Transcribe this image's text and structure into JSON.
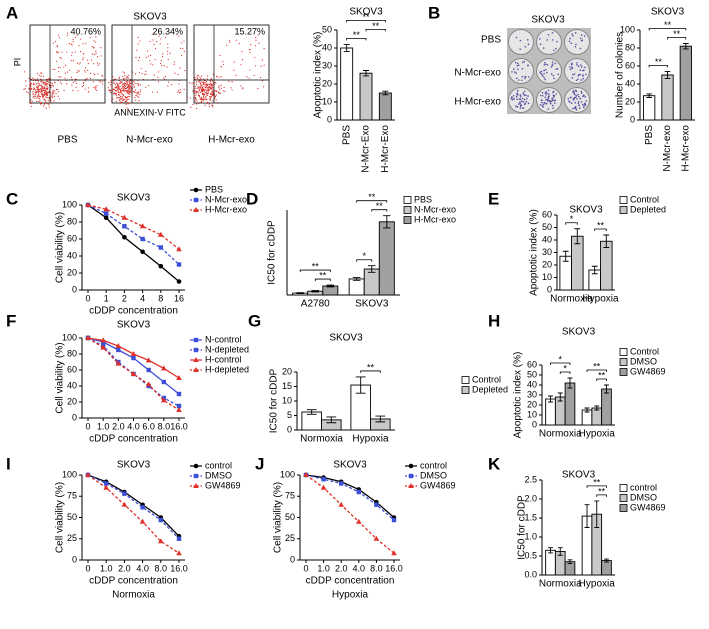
{
  "flow_cytometry": {
    "panel": "A",
    "title": "SKOV3",
    "y_label": "PI",
    "x_label": "ANNEXIN-V FITC",
    "plots": [
      {
        "label": "PBS",
        "percent": "40.76%"
      },
      {
        "label": "N-Mcr-exo",
        "percent": "26.34%"
      },
      {
        "label": "H-Mcr-exo",
        "percent": "15.27%"
      }
    ]
  },
  "colony_assay": {
    "panel": "B",
    "title": "SKOV3",
    "rows": [
      "PBS",
      "N-Mcr-exo",
      "H-Mcr-exo"
    ]
  },
  "chart_data": [
    {
      "type": "bar",
      "title": "SKOV3",
      "y_label": "Apoptotic index (%)",
      "categories": [
        "PBS",
        "N-Mcr-Exo",
        "H-Mcr-Exo"
      ],
      "values": [
        40,
        26,
        15
      ],
      "errors": [
        2,
        1.5,
        1
      ],
      "colors": [
        "#ffffff",
        "#c8c8c8",
        "#a0a0a0"
      ],
      "ylim": [
        0,
        50
      ],
      "yticks": [
        0,
        10,
        20,
        30,
        40,
        50
      ],
      "significance": [
        {
          "label": "**",
          "bars": [
            0,
            1
          ]
        },
        {
          "label": "**",
          "bars": [
            1,
            2
          ]
        },
        {
          "label": "**",
          "bars": [
            0,
            2
          ]
        }
      ]
    },
    {
      "type": "bar",
      "title": "SKOV3",
      "y_label": "Number of colonies",
      "categories": [
        "PBS",
        "N-Mcr-exo",
        "H-Mcr-exo"
      ],
      "values": [
        27,
        50,
        82
      ],
      "errors": [
        2,
        4,
        3
      ],
      "colors": [
        "#ffffff",
        "#c8c8c8",
        "#a0a0a0"
      ],
      "ylim": [
        0,
        100
      ],
      "yticks": [
        0,
        20,
        40,
        60,
        80,
        100
      ],
      "significance": [
        {
          "label": "**",
          "bars": [
            0,
            1
          ]
        },
        {
          "label": "**",
          "bars": [
            1,
            2
          ]
        },
        {
          "label": "**",
          "bars": [
            0,
            2
          ]
        }
      ]
    },
    {
      "type": "line",
      "panel": "C",
      "title": "SKOV3",
      "x_label": "cDDP concentration",
      "y_label": "Cell viability (%)",
      "categories": [
        "0",
        "1",
        "2",
        "4",
        "8",
        "16"
      ],
      "ylim": [
        0,
        100
      ],
      "yticks": [
        0,
        20,
        40,
        60,
        80,
        100
      ],
      "series": [
        {
          "name": "PBS",
          "color": "#000000",
          "marker": "circle",
          "style": "solid",
          "values": [
            100,
            85,
            62,
            45,
            28,
            10
          ]
        },
        {
          "name": "N-Mcr-exo",
          "color": "#3b4fd8",
          "marker": "square",
          "style": "dashed",
          "values": [
            100,
            90,
            75,
            60,
            50,
            30
          ]
        },
        {
          "name": "H-Mcr-exo",
          "color": "#e0302a",
          "marker": "triangle",
          "style": "dashed",
          "values": [
            100,
            95,
            85,
            75,
            65,
            48
          ]
        }
      ]
    },
    {
      "type": "bar",
      "panel": "D",
      "y_label": "IC50 for cDDP",
      "categories": [
        "A2780",
        "SKOV3"
      ],
      "ylim": [
        0,
        18
      ],
      "series": [
        {
          "name": "PBS",
          "color": "#ffffff",
          "values": [
            0.4,
            3.4
          ],
          "errors": [
            0.1,
            0.3
          ]
        },
        {
          "name": "N-Mcr-exo",
          "color": "#c8c8c8",
          "values": [
            0.8,
            5.5
          ],
          "errors": [
            0.15,
            0.7
          ]
        },
        {
          "name": "H-Mcr-exo",
          "color": "#a0a0a0",
          "values": [
            1.9,
            15.5
          ],
          "errors": [
            0.2,
            1.3
          ]
        }
      ],
      "significance": [
        {
          "label": "**",
          "bars": [
            1,
            2
          ]
        },
        {
          "label": "**",
          "bars": [
            0,
            2
          ]
        },
        {
          "label": "*",
          "bars": [
            3,
            4
          ]
        },
        {
          "label": "**",
          "bars": [
            4,
            5
          ]
        },
        {
          "label": "**",
          "bars": [
            3,
            5
          ]
        }
      ]
    },
    {
      "type": "bar",
      "panel": "E",
      "title": "SKOV3",
      "y_label": "Apoptotic index (%)",
      "categories": [
        "Normoxia",
        "Hypoxia"
      ],
      "ylim": [
        0,
        60
      ],
      "yticks": [
        0,
        10,
        20,
        30,
        40,
        50,
        60
      ],
      "series": [
        {
          "name": "Control",
          "color": "#ffffff",
          "values": [
            27,
            16
          ],
          "errors": [
            4,
            3
          ]
        },
        {
          "name": "Depleted",
          "color": "#c8c8c8",
          "values": [
            43,
            39
          ],
          "errors": [
            6,
            5
          ]
        }
      ],
      "significance": [
        {
          "label": "*",
          "bars": [
            0,
            1
          ]
        },
        {
          "label": "**",
          "bars": [
            2,
            3
          ]
        }
      ]
    },
    {
      "type": "line",
      "panel": "F",
      "title": "SKOV3",
      "x_label": "cDDP concentration",
      "y_label": "Cell viability (%)",
      "categories": [
        "0",
        "1.0",
        "2.0",
        "4.0",
        "6.0",
        "8.0",
        "16.0"
      ],
      "ylim": [
        0,
        100
      ],
      "yticks": [
        0,
        20,
        40,
        60,
        80,
        100
      ],
      "series": [
        {
          "name": "N-control",
          "color": "#3b4fd8",
          "marker": "square",
          "style": "solid",
          "values": [
            100,
            95,
            85,
            75,
            60,
            45,
            30
          ]
        },
        {
          "name": "N-depleted",
          "color": "#3b4fd8",
          "marker": "square",
          "style": "dashed",
          "values": [
            100,
            90,
            70,
            55,
            40,
            25,
            15
          ]
        },
        {
          "name": "H-control",
          "color": "#e0302a",
          "marker": "triangle",
          "style": "solid",
          "values": [
            100,
            97,
            90,
            80,
            72,
            62,
            50
          ]
        },
        {
          "name": "H-depleted",
          "color": "#e0302a",
          "marker": "triangle",
          "style": "dashed",
          "values": [
            100,
            88,
            68,
            55,
            42,
            22,
            10
          ]
        }
      ]
    },
    {
      "type": "bar",
      "panel": "G",
      "title": "SKOV3",
      "y_label": "IC50 for cDDP",
      "categories": [
        "Normoxia",
        "Hypoxia"
      ],
      "ylim": [
        0,
        20
      ],
      "yticks": [
        0,
        5,
        10,
        15,
        20
      ],
      "series": [
        {
          "name": "Control",
          "color": "#ffffff",
          "values": [
            6.2,
            15.5
          ],
          "errors": [
            0.8,
            2.8
          ]
        },
        {
          "name": "Depleted",
          "color": "#c8c8c8",
          "values": [
            3.5,
            3.8
          ],
          "errors": [
            1,
            1
          ]
        }
      ],
      "significance": [
        {
          "label": "**",
          "bars": [
            2,
            3
          ]
        }
      ]
    },
    {
      "type": "bar",
      "panel": "H",
      "title": "SKOV3",
      "y_label": "Apoptotic index (%)",
      "categories": [
        "Normoxia",
        "Hypoxia"
      ],
      "ylim": [
        0,
        60
      ],
      "yticks": [
        0,
        10,
        20,
        30,
        40,
        50,
        60
      ],
      "series": [
        {
          "name": "Control",
          "color": "#ffffff",
          "values": [
            26,
            15
          ],
          "errors": [
            3,
            2
          ]
        },
        {
          "name": "DMSO",
          "color": "#c8c8c8",
          "values": [
            28,
            17
          ],
          "errors": [
            4,
            2
          ]
        },
        {
          "name": "GW4869",
          "color": "#a0a0a0",
          "values": [
            42,
            36
          ],
          "errors": [
            5,
            4
          ]
        }
      ],
      "significance": [
        {
          "label": "*",
          "bars": [
            1,
            2
          ]
        },
        {
          "label": "*",
          "bars": [
            0,
            2
          ]
        },
        {
          "label": "**",
          "bars": [
            4,
            5
          ]
        },
        {
          "label": "**",
          "bars": [
            3,
            5
          ]
        }
      ]
    },
    {
      "type": "line",
      "panel": "I",
      "title": "SKOV3",
      "x_label": "cDDP concentration",
      "x_sublabel": "Normoxia",
      "y_label": "Cell viability (%)",
      "categories": [
        "0",
        "1.0",
        "2.0",
        "4.0",
        "8.0",
        "16.0"
      ],
      "ylim": [
        0,
        100
      ],
      "yticks": [
        0,
        25,
        50,
        75,
        100
      ],
      "series": [
        {
          "name": "control",
          "color": "#000000",
          "marker": "circle",
          "style": "solid",
          "values": [
            100,
            92,
            80,
            65,
            50,
            28
          ]
        },
        {
          "name": "DMSO",
          "color": "#3b4fd8",
          "marker": "square",
          "style": "dashed",
          "values": [
            100,
            90,
            78,
            62,
            47,
            25
          ]
        },
        {
          "name": "GW4869",
          "color": "#e0302a",
          "marker": "triangle",
          "style": "dashed",
          "values": [
            100,
            85,
            65,
            45,
            22,
            8
          ]
        }
      ]
    },
    {
      "type": "line",
      "panel": "J",
      "title": "SKOV3",
      "x_label": "cDDP concentration",
      "x_sublabel": "Hypoxia",
      "y_label": "Cell viability (%)",
      "categories": [
        "0",
        "1.0",
        "2.0",
        "4.0",
        "8.0",
        "16.0"
      ],
      "ylim": [
        0,
        100
      ],
      "yticks": [
        0,
        25,
        50,
        75,
        100
      ],
      "series": [
        {
          "name": "control",
          "color": "#000000",
          "marker": "circle",
          "style": "solid",
          "values": [
            100,
            97,
            92,
            83,
            68,
            50
          ]
        },
        {
          "name": "DMSO",
          "color": "#3b4fd8",
          "marker": "square",
          "style": "dashed",
          "values": [
            100,
            95,
            90,
            80,
            65,
            47
          ]
        },
        {
          "name": "GW4869",
          "color": "#e0302a",
          "marker": "triangle",
          "style": "dashed",
          "values": [
            100,
            85,
            65,
            45,
            25,
            8
          ]
        }
      ]
    },
    {
      "type": "bar",
      "panel": "K",
      "title": "SKOV3",
      "y_label": "IC50 for cDDP",
      "categories": [
        "Normoxia",
        "Hypoxia"
      ],
      "ylim": [
        0,
        2.5
      ],
      "yticks": [
        {
          "value": 0,
          "label": "0.0"
        },
        {
          "value": 0.5,
          "label": "0.5"
        },
        {
          "value": 1,
          "label": "1.0"
        },
        {
          "value": 1.5,
          "label": "1.5"
        },
        {
          "value": 2,
          "label": "2.0"
        },
        {
          "value": 2.5,
          "label": "2.5"
        }
      ],
      "series": [
        {
          "name": "control",
          "color": "#ffffff",
          "values": [
            0.65,
            1.55
          ],
          "errors": [
            0.07,
            0.3
          ]
        },
        {
          "name": "DMSO",
          "color": "#c8c8c8",
          "values": [
            0.62,
            1.6
          ],
          "errors": [
            0.1,
            0.35
          ]
        },
        {
          "name": "GW4869",
          "color": "#a0a0a0",
          "values": [
            0.35,
            0.38
          ],
          "errors": [
            0.05,
            0.04
          ]
        }
      ],
      "significance": [
        {
          "label": "**",
          "bars": [
            4,
            5
          ]
        },
        {
          "label": "**",
          "bars": [
            3,
            5
          ]
        }
      ]
    }
  ]
}
